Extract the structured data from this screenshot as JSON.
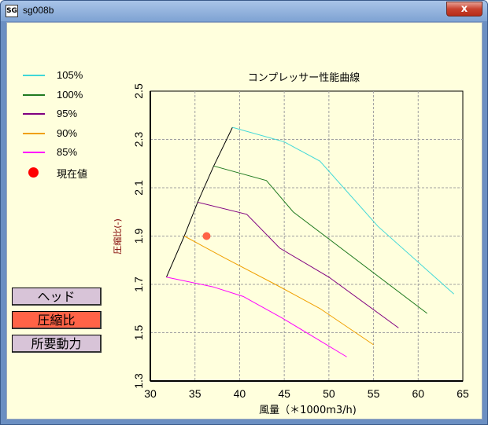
{
  "window": {
    "title": "sg008b",
    "app_icon": "app-icon",
    "app_icon_text": "SG",
    "close_label": "x"
  },
  "colors": {
    "client_bg": "#ffffdd",
    "button_normal": "#d8c4d8",
    "button_active": "#ff6347"
  },
  "legend": [
    {
      "label": "105%",
      "color": "#40d8d8",
      "kind": "line"
    },
    {
      "label": "100%",
      "color": "#1f7a1f",
      "kind": "line"
    },
    {
      "label": "95%",
      "color": "#800080",
      "kind": "line"
    },
    {
      "label": "90%",
      "color": "#f0a000",
      "kind": "line"
    },
    {
      "label": "85%",
      "color": "#ff00ff",
      "kind": "line"
    },
    {
      "label": "現在値",
      "color": "#ff0000",
      "kind": "dot"
    }
  ],
  "buttons": [
    {
      "label": "ヘッド",
      "active": false
    },
    {
      "label": "圧縮比",
      "active": true
    },
    {
      "label": "所要動力",
      "active": false
    }
  ],
  "chart_data": {
    "type": "line",
    "title": "コンプレッサー性能曲線",
    "xlabel": "風量（＊1000m3/h)",
    "ylabel": "圧縮比(-)",
    "xlim": [
      30,
      65
    ],
    "ylim": [
      1.3,
      2.5
    ],
    "xticks": [
      30,
      35,
      40,
      45,
      50,
      55,
      60,
      65
    ],
    "yticks": [
      1.3,
      1.5,
      1.7,
      1.9,
      2.1,
      2.3,
      2.5
    ],
    "ytick_labels": [
      "1.3",
      "1.5",
      "1.7",
      "1.9",
      "2.1",
      "2.3",
      "2.5"
    ],
    "grid": true,
    "series": [
      {
        "name": "105%",
        "color": "#40d8d8",
        "points": [
          [
            39.2,
            2.35
          ],
          [
            45,
            2.29
          ],
          [
            49,
            2.21
          ],
          [
            55.5,
            1.94
          ],
          [
            64,
            1.66
          ]
        ]
      },
      {
        "name": "100%",
        "color": "#1f7a1f",
        "points": [
          [
            37.1,
            2.19
          ],
          [
            43,
            2.13
          ],
          [
            46,
            2.0
          ],
          [
            61,
            1.58
          ]
        ]
      },
      {
        "name": "95%",
        "color": "#800080",
        "points": [
          [
            35.3,
            2.04
          ],
          [
            40.8,
            1.99
          ],
          [
            44.5,
            1.85
          ],
          [
            50,
            1.73
          ],
          [
            57.8,
            1.52
          ]
        ]
      },
      {
        "name": "90%",
        "color": "#f0a000",
        "points": [
          [
            33.8,
            1.9
          ],
          [
            38.3,
            1.81
          ],
          [
            44,
            1.7
          ],
          [
            49,
            1.6
          ],
          [
            55,
            1.45
          ]
        ]
      },
      {
        "name": "85%",
        "color": "#ff00ff",
        "points": [
          [
            31.8,
            1.73
          ],
          [
            37,
            1.69
          ],
          [
            40.4,
            1.65
          ],
          [
            44.8,
            1.56
          ],
          [
            52,
            1.4
          ]
        ]
      }
    ],
    "surge_line": {
      "color": "#000000",
      "points": [
        [
          31.8,
          1.73
        ],
        [
          33.8,
          1.9
        ],
        [
          35.3,
          2.04
        ],
        [
          37.1,
          2.19
        ],
        [
          39.2,
          2.35
        ]
      ]
    },
    "current_point": {
      "name": "現在値",
      "x": 36.3,
      "y": 1.9,
      "color": "#ff6347"
    }
  }
}
